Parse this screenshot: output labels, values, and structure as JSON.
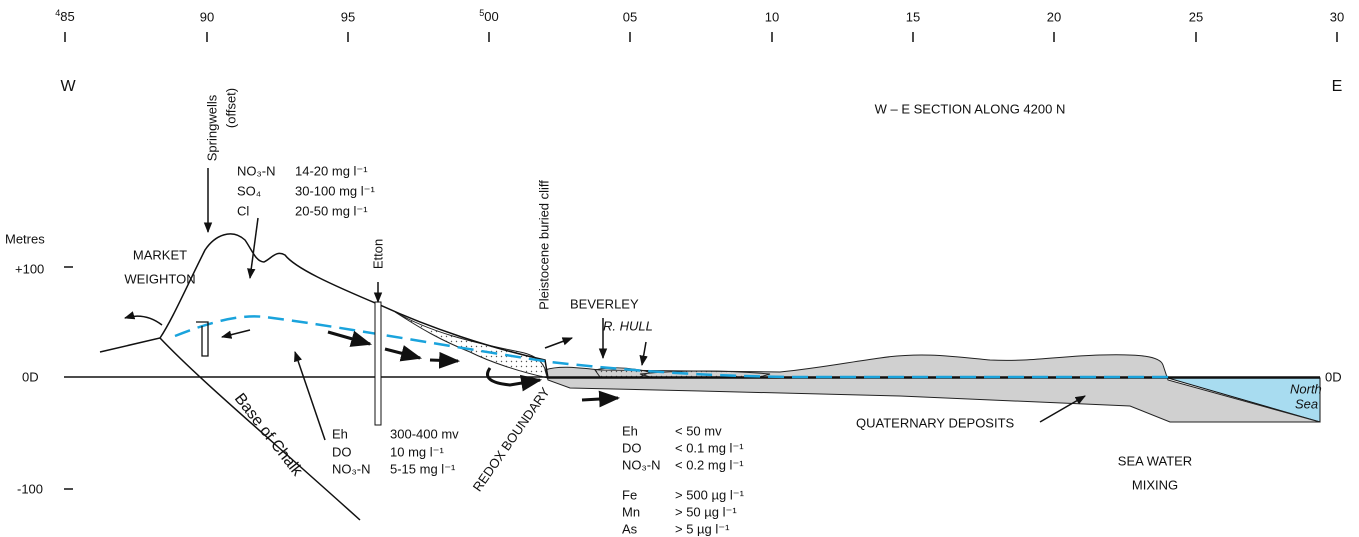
{
  "top_axis": {
    "ticks": [
      {
        "sup": "4",
        "label": "85"
      },
      {
        "label": "90"
      },
      {
        "label": "95"
      },
      {
        "sup": "5",
        "label": "00"
      },
      {
        "label": "05"
      },
      {
        "label": "10"
      },
      {
        "label": "15"
      },
      {
        "label": "20"
      },
      {
        "label": "25"
      },
      {
        "label": "30"
      }
    ]
  },
  "west": "W",
  "east": "E",
  "title": "W – E SECTION ALONG 4200 N",
  "left_axis": {
    "title": "Metres",
    "ticks": [
      "+100",
      "0D",
      "-100"
    ],
    "right_label": "0D"
  },
  "labels": {
    "springwells": "Springwells",
    "offset": "(offset)",
    "market": "MARKET",
    "weighton": "WEIGHTON",
    "etton": "Etton",
    "cliff": "Pleistocene buried cliff",
    "beverley": "BEVERLEY",
    "hull": "R. HULL",
    "chalk": "Base of Chalk",
    "redox": "REDOX BOUNDARY",
    "quaternary": "QUATERNARY DEPOSITS",
    "sea_water": "SEA WATER",
    "mixing": "MIXING",
    "north": "North",
    "sea": "Sea"
  },
  "chem_recharge": [
    [
      "NO₃-N",
      "14-20 mg l⁻¹"
    ],
    [
      "SO₄",
      "30-100 mg l⁻¹"
    ],
    [
      "Cl",
      "20-50 mg l⁻¹"
    ]
  ],
  "chem_confined": [
    [
      "Eh",
      "300-400 mv"
    ],
    [
      "DO",
      "10 mg l⁻¹"
    ],
    [
      "NO₃-N",
      "5-15 mg l⁻¹"
    ]
  ],
  "chem_reduced": [
    [
      "Eh",
      "< 50 mv"
    ],
    [
      "DO",
      "< 0.1 mg l⁻¹"
    ],
    [
      "NO₃-N",
      "< 0.2 mg l⁻¹"
    ],
    [
      "Fe",
      "> 500 µg l⁻¹"
    ],
    [
      "Mn",
      "> 50 µg l⁻¹"
    ],
    [
      "As",
      "> 5 µg l⁻¹"
    ]
  ]
}
